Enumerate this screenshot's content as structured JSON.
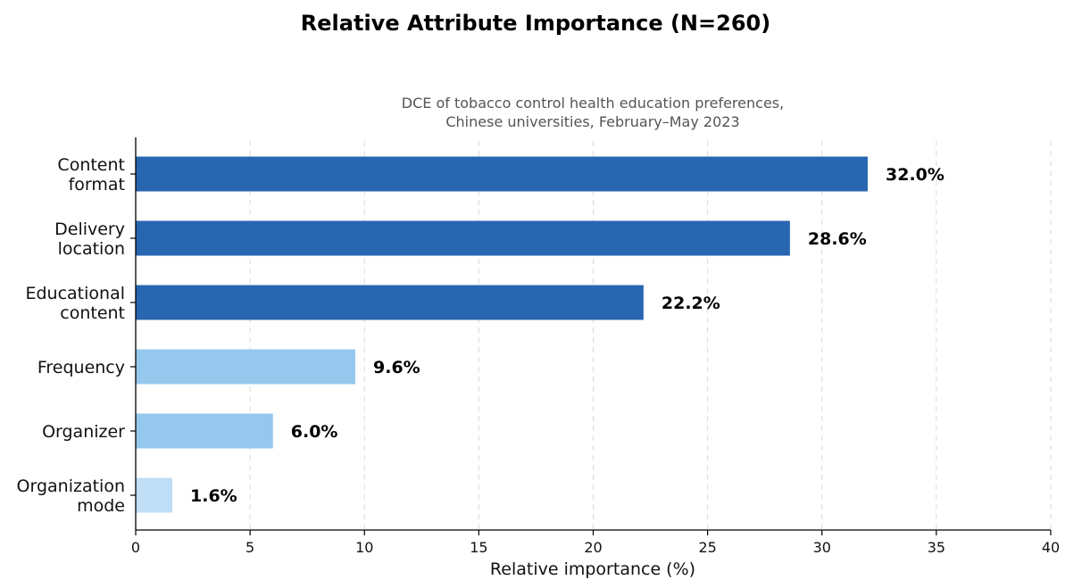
{
  "chart_data": {
    "type": "bar",
    "orientation": "horizontal",
    "title": "Relative Attribute Importance (N=260)",
    "subtitle": [
      "DCE of tobacco control health education preferences,",
      "Chinese universities, February–May 2023"
    ],
    "xlabel": "Relative importance (%)",
    "ylabel": "",
    "xlim": [
      0,
      40
    ],
    "xticks": [
      0,
      5,
      10,
      15,
      20,
      25,
      30,
      35,
      40
    ],
    "grid": "vertical-dashed",
    "categories": [
      [
        "Content",
        "format"
      ],
      [
        "Delivery",
        "location"
      ],
      [
        "Educational",
        "content"
      ],
      [
        "Frequency"
      ],
      [
        "Organizer"
      ],
      [
        "Organization",
        "mode"
      ]
    ],
    "values": [
      32.0,
      28.6,
      22.2,
      9.6,
      6.0,
      1.6
    ],
    "data_labels": [
      "32.0%",
      "28.6%",
      "22.2%",
      "9.6%",
      "6.0%",
      "1.6%"
    ],
    "bar_colors": [
      "#2866b1",
      "#2866b1",
      "#2866b1",
      "#96c8ee",
      "#96c8ee",
      "#c0def5"
    ]
  }
}
